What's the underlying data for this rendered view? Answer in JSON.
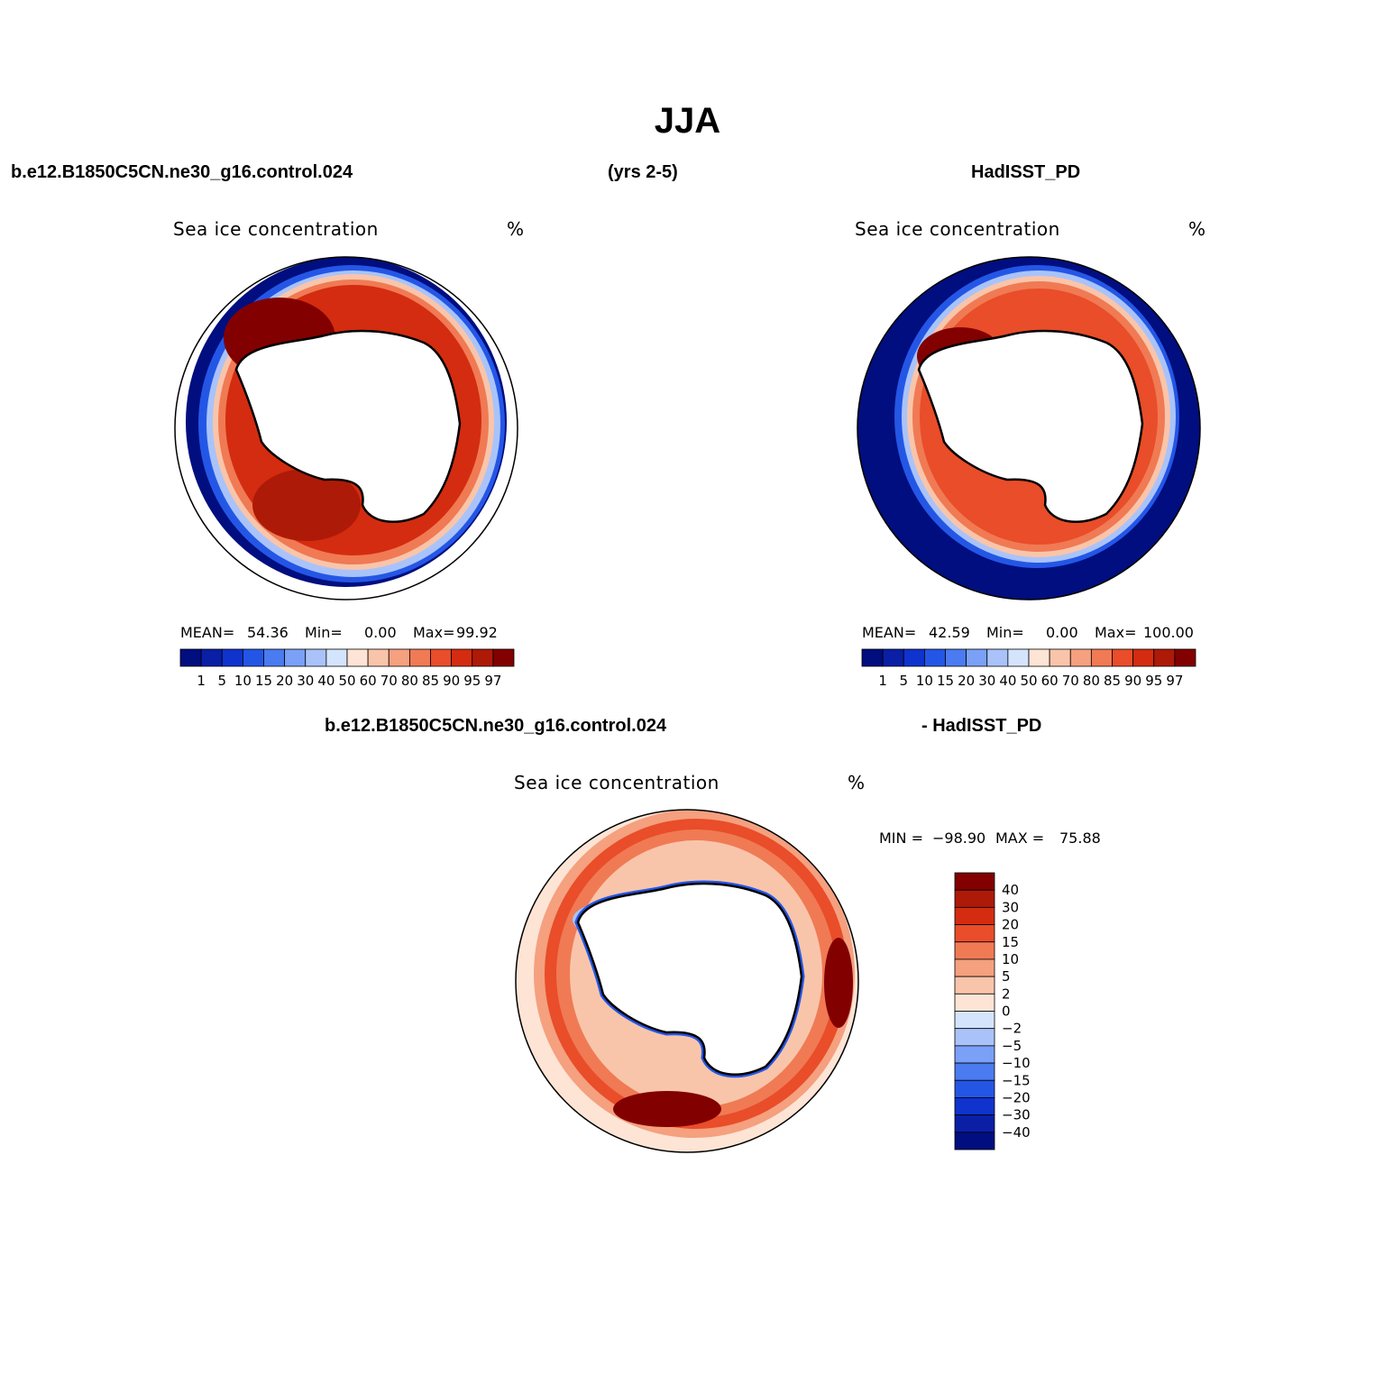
{
  "title": "JJA",
  "top_left_header": "b.e12.B1850C5CN.ne30_g16.control.024",
  "top_center_header": "(yrs 2-5)",
  "top_right_header": "HadISST_PD",
  "bottom_header_left": "b.e12.B1850C5CN.ne30_g16.control.024",
  "bottom_header_right": "- HadISST_PD",
  "panels": [
    {
      "id": "model",
      "variable_label": "Sea ice concentration",
      "units": "%",
      "stats": {
        "mean_label": "MEAN=",
        "mean": "54.36",
        "min_label": "Min=",
        "min": "0.00",
        "max_label": "Max=",
        "max": "99.92"
      }
    },
    {
      "id": "obs",
      "variable_label": "Sea ice concentration",
      "units": "%",
      "stats": {
        "mean_label": "MEAN=",
        "mean": "42.59",
        "min_label": "Min=",
        "min": "0.00",
        "max_label": "Max=",
        "max": "100.00"
      }
    },
    {
      "id": "diff",
      "variable_label": "Sea ice concentration",
      "units": "%",
      "stats": {
        "min_label": "MIN =",
        "min": "−98.90",
        "max_label": "MAX =",
        "max": "75.88"
      }
    }
  ],
  "abs_colorbar": {
    "levels": [
      "1",
      "5",
      "10",
      "15",
      "20",
      "30",
      "40",
      "50",
      "60",
      "70",
      "80",
      "85",
      "90",
      "95",
      "97"
    ],
    "colors": [
      "#000e7f",
      "#0a1fa6",
      "#0f33cc",
      "#2456e6",
      "#4a7bf0",
      "#7aa0f7",
      "#a9c3fa",
      "#d5e4fd",
      "#fde4d5",
      "#f9c5aa",
      "#f5a07f",
      "#f07a54",
      "#e94d29",
      "#d42c10",
      "#ae1a08",
      "#820000"
    ]
  },
  "diff_colorbar": {
    "levels": [
      "40",
      "30",
      "20",
      "15",
      "10",
      "5",
      "2",
      "0",
      "−2",
      "−5",
      "−10",
      "−15",
      "−20",
      "−30",
      "−40"
    ],
    "colors": [
      "#820000",
      "#ae1a08",
      "#d42c10",
      "#e94d29",
      "#f07a54",
      "#f5a07f",
      "#f9c5aa",
      "#fde4d5",
      "#d5e4fd",
      "#a9c3fa",
      "#7aa0f7",
      "#4a7bf0",
      "#2456e6",
      "#0f33cc",
      "#0a1fa6",
      "#000e7f"
    ]
  }
}
